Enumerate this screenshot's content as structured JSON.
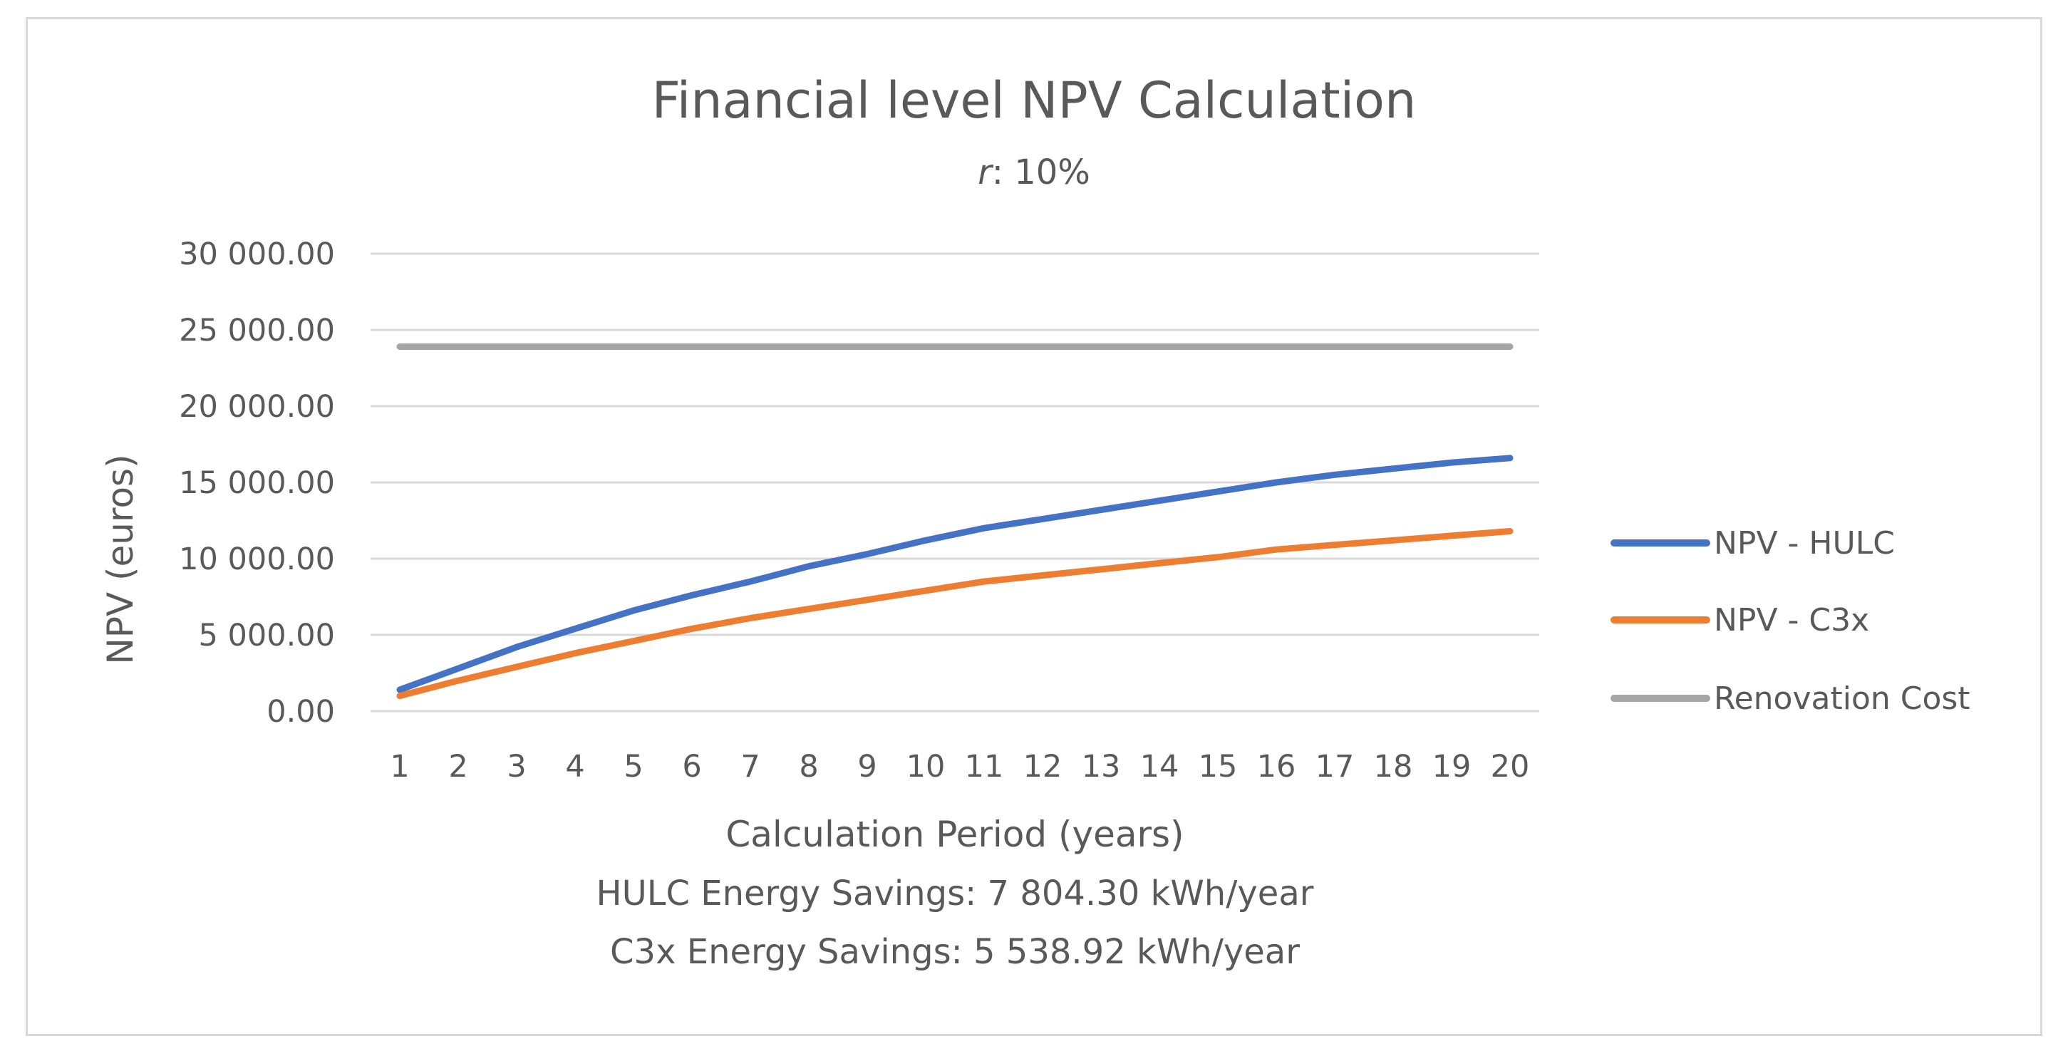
{
  "chart_data": {
    "type": "line",
    "title": "Financial level NPV Calculation",
    "subtitle": {
      "italic": "r",
      "rest": ": 10%"
    },
    "xlabel": "Calculation Period (years)",
    "ylabel": "NPV (euros)",
    "categories": [
      "1",
      "2",
      "3",
      "4",
      "5",
      "6",
      "7",
      "8",
      "9",
      "10",
      "11",
      "12",
      "13",
      "14",
      "15",
      "16",
      "17",
      "18",
      "19",
      "20"
    ],
    "ylim": [
      0,
      30000
    ],
    "yticks": [
      0,
      5000,
      10000,
      15000,
      20000,
      25000,
      30000
    ],
    "ytick_labels": [
      "0.00",
      "5 000.00",
      "10 000.00",
      "15 000.00",
      "20 000.00",
      "25 000.00",
      "30 000.00"
    ],
    "grid": true,
    "legend_position": "right",
    "series": [
      {
        "name": "NPV - HULC",
        "color": "#4472c4",
        "values": [
          1400,
          2800,
          4200,
          5400,
          6600,
          7600,
          8500,
          9500,
          10300,
          11200,
          12000,
          12600,
          13200,
          13800,
          14400,
          15000,
          15500,
          15900,
          16300,
          16600
        ]
      },
      {
        "name": "NPV - C3x",
        "color": "#ed7d31",
        "values": [
          1000,
          2000,
          2900,
          3800,
          4600,
          5400,
          6100,
          6700,
          7300,
          7900,
          8500,
          8900,
          9300,
          9700,
          10100,
          10600,
          10900,
          11200,
          11500,
          11800
        ]
      },
      {
        "name": "Renovation Cost",
        "color": "#a5a5a5",
        "values": [
          23900,
          23900,
          23900,
          23900,
          23900,
          23900,
          23900,
          23900,
          23900,
          23900,
          23900,
          23900,
          23900,
          23900,
          23900,
          23900,
          23900,
          23900,
          23900,
          23900
        ]
      }
    ],
    "notes": [
      "HULC Energy Savings: 7 804.30 kWh/year",
      "C3x Energy Savings: 5 538.92 kWh/year"
    ]
  }
}
